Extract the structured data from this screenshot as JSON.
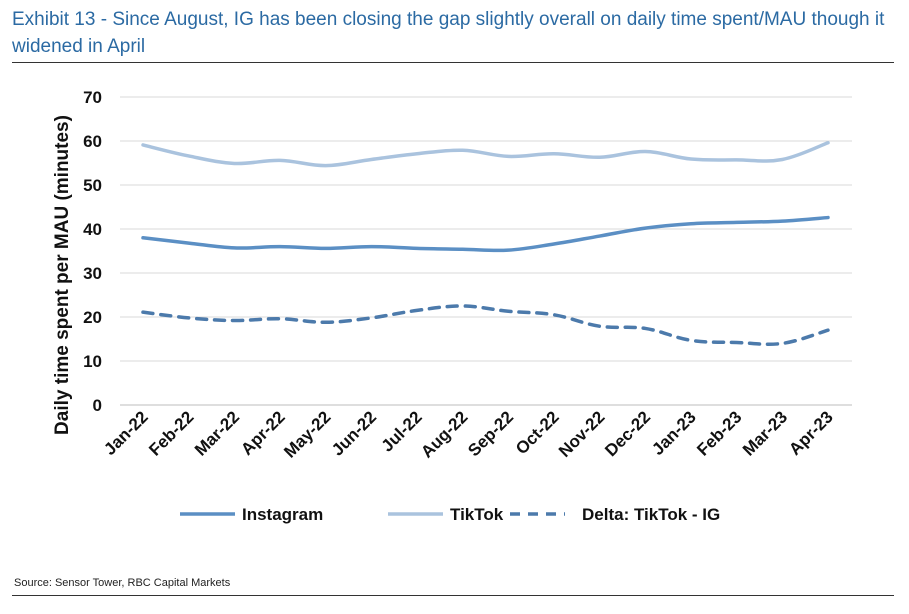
{
  "exhibit": {
    "title": "Exhibit 13 - Since August, IG has been closing the gap slightly overall on daily time spent/MAU though it widened in April",
    "source": "Source: Sensor Tower, RBC Capital Markets"
  },
  "chart_data": {
    "type": "line",
    "title": "",
    "xlabel": "",
    "ylabel": "Daily time spent per MAU (minutes)",
    "ylim": [
      0,
      70
    ],
    "yticks": [
      0,
      10,
      20,
      30,
      40,
      50,
      60,
      70
    ],
    "grid": true,
    "legend_position": "bottom",
    "categories": [
      "Jan-22",
      "Feb-22",
      "Mar-22",
      "Apr-22",
      "May-22",
      "Jun-22",
      "Jul-22",
      "Aug-22",
      "Sep-22",
      "Oct-22",
      "Nov-22",
      "Dec-22",
      "Jan-23",
      "Feb-23",
      "Mar-23",
      "Apr-23"
    ],
    "series": [
      {
        "name": "Instagram",
        "color": "#5b8fc4",
        "style": "solid",
        "values": [
          38,
          36.8,
          35.7,
          36,
          35.6,
          36,
          35.6,
          35.4,
          35.2,
          36.6,
          38.4,
          40.2,
          41.2,
          41.5,
          41.8,
          42.6
        ]
      },
      {
        "name": "TikTok",
        "color": "#aac3de",
        "style": "solid",
        "values": [
          59.1,
          56.6,
          54.9,
          55.6,
          54.4,
          55.8,
          57.1,
          57.9,
          56.5,
          57.1,
          56.3,
          57.6,
          55.9,
          55.7,
          55.8,
          59.6
        ]
      },
      {
        "name": "Delta: TikTok - IG",
        "color": "#4c7aab",
        "style": "dashed",
        "values": [
          21.1,
          19.8,
          19.2,
          19.6,
          18.8,
          19.8,
          21.5,
          22.5,
          21.3,
          20.5,
          17.9,
          17.4,
          14.7,
          14.2,
          14,
          17
        ]
      }
    ]
  }
}
